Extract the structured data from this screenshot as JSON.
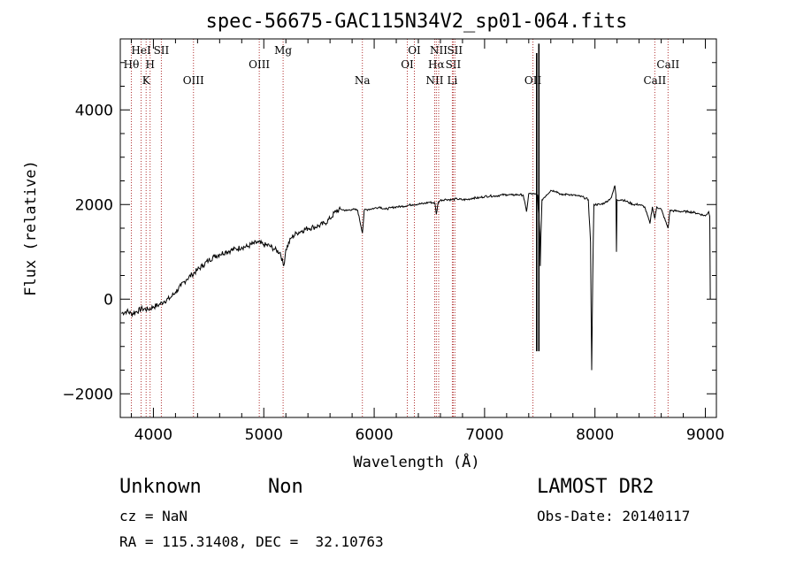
{
  "chart_data": {
    "type": "line",
    "title": "spec-56675-GAC115N34V2_sp01-064.fits",
    "xlabel": "Wavelength (Å)",
    "ylabel": "Flux (relative)",
    "xlim": [
      3700,
      9100
    ],
    "ylim": [
      -2500,
      5500
    ],
    "xticks": [
      "4000",
      "5000",
      "6000",
      "7000",
      "8000",
      "9000"
    ],
    "yticks": [
      "-2000",
      "0",
      "2000",
      "4000"
    ],
    "grid": false,
    "series": [
      {
        "values": [
          [
            3710,
            -300
          ],
          [
            3760,
            -250
          ],
          [
            3800,
            -310
          ],
          [
            3850,
            -260
          ],
          [
            3900,
            -200
          ],
          [
            3950,
            -220
          ],
          [
            4000,
            -160
          ],
          [
            4050,
            -120
          ],
          [
            4100,
            -40
          ],
          [
            4150,
            20
          ],
          [
            4200,
            150
          ],
          [
            4250,
            280
          ],
          [
            4300,
            420
          ],
          [
            4350,
            520
          ],
          [
            4400,
            620
          ],
          [
            4450,
            720
          ],
          [
            4500,
            820
          ],
          [
            4550,
            900
          ],
          [
            4600,
            950
          ],
          [
            4650,
            1000
          ],
          [
            4700,
            1030
          ],
          [
            4750,
            1060
          ],
          [
            4800,
            1100
          ],
          [
            4850,
            1110
          ],
          [
            4900,
            1170
          ],
          [
            4950,
            1200
          ],
          [
            5000,
            1150
          ],
          [
            5050,
            1130
          ],
          [
            5100,
            1050
          ],
          [
            5150,
            980
          ],
          [
            5180,
            700
          ],
          [
            5200,
            1050
          ],
          [
            5250,
            1300
          ],
          [
            5300,
            1400
          ],
          [
            5350,
            1450
          ],
          [
            5400,
            1500
          ],
          [
            5450,
            1520
          ],
          [
            5500,
            1550
          ],
          [
            5550,
            1600
          ],
          [
            5600,
            1700
          ],
          [
            5650,
            1850
          ],
          [
            5700,
            1900
          ],
          [
            5750,
            1870
          ],
          [
            5800,
            1900
          ],
          [
            5850,
            1880
          ],
          [
            5894,
            1400
          ],
          [
            5910,
            1880
          ],
          [
            5950,
            1900
          ],
          [
            6000,
            1920
          ],
          [
            6050,
            1950
          ],
          [
            6100,
            1900
          ],
          [
            6150,
            1930
          ],
          [
            6200,
            1950
          ],
          [
            6250,
            1960
          ],
          [
            6300,
            1980
          ],
          [
            6350,
            2000
          ],
          [
            6400,
            2010
          ],
          [
            6450,
            2020
          ],
          [
            6500,
            2050
          ],
          [
            6550,
            2030
          ],
          [
            6563,
            1800
          ],
          [
            6580,
            2050
          ],
          [
            6600,
            2090
          ],
          [
            6650,
            2110
          ],
          [
            6700,
            2100
          ],
          [
            6750,
            2120
          ],
          [
            6800,
            2100
          ],
          [
            6850,
            2110
          ],
          [
            6900,
            2140
          ],
          [
            6950,
            2140
          ],
          [
            7000,
            2170
          ],
          [
            7050,
            2180
          ],
          [
            7100,
            2180
          ],
          [
            7150,
            2200
          ],
          [
            7200,
            2210
          ],
          [
            7250,
            2200
          ],
          [
            7300,
            2210
          ],
          [
            7350,
            2200
          ],
          [
            7380,
            1850
          ],
          [
            7400,
            2230
          ],
          [
            7450,
            2220
          ],
          [
            7480,
            2200
          ],
          [
            7500,
            1400
          ],
          [
            7505,
            700
          ],
          [
            7510,
            1300
          ],
          [
            7520,
            2100
          ],
          [
            7560,
            2200
          ],
          [
            7600,
            2300
          ],
          [
            7650,
            2280
          ],
          [
            7700,
            2200
          ],
          [
            7750,
            2220
          ],
          [
            7800,
            2200
          ],
          [
            7850,
            2180
          ],
          [
            7900,
            2150
          ],
          [
            7940,
            2100
          ],
          [
            7960,
            1200
          ],
          [
            7970,
            -1500
          ],
          [
            7980,
            500
          ],
          [
            7990,
            2000
          ],
          [
            8050,
            2000
          ],
          [
            8100,
            2050
          ],
          [
            8150,
            2150
          ],
          [
            8180,
            2400
          ],
          [
            8190,
            2200
          ],
          [
            8195,
            1000
          ],
          [
            8200,
            2100
          ],
          [
            8250,
            2100
          ],
          [
            8300,
            2050
          ],
          [
            8350,
            2000
          ],
          [
            8400,
            2000
          ],
          [
            8450,
            1950
          ],
          [
            8498,
            1600
          ],
          [
            8520,
            1950
          ],
          [
            8542,
            1700
          ],
          [
            8560,
            1950
          ],
          [
            8600,
            1900
          ],
          [
            8662,
            1500
          ],
          [
            8680,
            1880
          ],
          [
            8700,
            1870
          ],
          [
            8750,
            1860
          ],
          [
            8800,
            1850
          ],
          [
            8850,
            1850
          ],
          [
            8900,
            1830
          ],
          [
            8950,
            1800
          ],
          [
            9000,
            1760
          ],
          [
            9030,
            1850
          ],
          [
            9040,
            1750
          ],
          [
            9045,
            0
          ]
        ]
      }
    ],
    "spikes": [
      [
        7472,
        5200,
        -1100
      ],
      [
        7492,
        5400,
        -1100
      ]
    ],
    "line_markers": [
      {
        "wave": 3800,
        "label": "Hθ",
        "row": 1
      },
      {
        "wave": 3889,
        "label": "HeI",
        "row": 0
      },
      {
        "wave": 3934,
        "label": "K",
        "row": 2
      },
      {
        "wave": 3970,
        "label": "H",
        "row": 1
      },
      {
        "wave": 4072,
        "label": "SII",
        "row": 0
      },
      {
        "wave": 4363,
        "label": "OIII",
        "row": 2
      },
      {
        "wave": 4959,
        "label": "OIII",
        "row": 1
      },
      {
        "wave": 5175,
        "label": "Mg",
        "row": 0
      },
      {
        "wave": 5893,
        "label": "Na",
        "row": 2
      },
      {
        "wave": 6300,
        "label": "OI",
        "row": 1
      },
      {
        "wave": 6364,
        "label": "OI",
        "row": 0
      },
      {
        "wave": 6548,
        "label": "NII",
        "row": 2
      },
      {
        "wave": 6563,
        "label": "Hα",
        "row": 1
      },
      {
        "wave": 6584,
        "label": "NII",
        "row": 0
      },
      {
        "wave": 6708,
        "label": "Li",
        "row": 2
      },
      {
        "wave": 6716,
        "label": "SII",
        "row": 1
      },
      {
        "wave": 6731,
        "label": "SII",
        "row": 0
      },
      {
        "wave": 7438,
        "label": "OII",
        "row": 2
      },
      {
        "wave": 8542,
        "label": "CaII",
        "row": 2
      },
      {
        "wave": 8662,
        "label": "CaII",
        "row": 1
      }
    ],
    "annotations": [
      "Unknown",
      "Non",
      "cz = NaN",
      "RA = 115.31408, DEC =  32.10763",
      "LAMOST DR2",
      "Obs-Date: 20140117"
    ]
  },
  "info": {
    "class": "Unknown",
    "subclass": "Non",
    "cz": "cz = NaN",
    "coords": "RA = 115.31408, DEC =  32.10763",
    "survey": "LAMOST DR2",
    "obsdate": "Obs-Date: 20140117"
  }
}
